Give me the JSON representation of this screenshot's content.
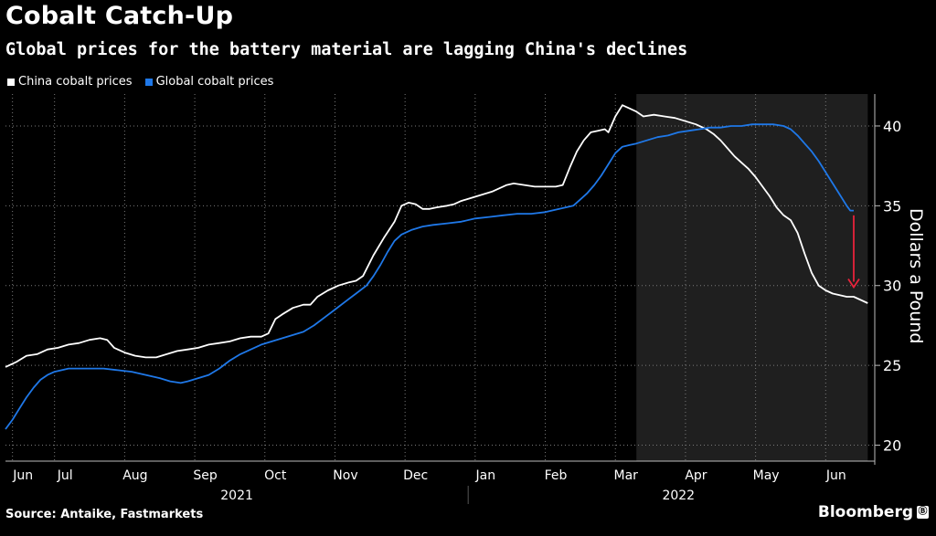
{
  "header": {
    "title": "Cobalt Catch-Up",
    "subtitle": "Global prices for the battery material are lagging China's declines"
  },
  "footer": {
    "source": "Source: Antaike, Fastmarkets",
    "brand": "Bloomberg",
    "brand_icon": "Ⓑ"
  },
  "colors": {
    "background": "#000000",
    "china_line": "#ffffff",
    "global_line": "#1f78e8",
    "highlight_band": "#1f1f1f",
    "arrow": "#e8233b",
    "grid": "#7a7a7a"
  },
  "chart_data": {
    "type": "line",
    "title": "Cobalt Catch-Up",
    "subtitle": "Global prices for the battery material are lagging China's declines",
    "ylabel": "Dollars a Pound",
    "xlabel": "",
    "ylim": [
      19,
      42
    ],
    "yticks": [
      20,
      25,
      30,
      35,
      40
    ],
    "xlim": [
      0,
      12.4
    ],
    "xticks": [
      {
        "label": "Jun",
        "pos": 0.25
      },
      {
        "label": "Jul",
        "pos": 0.85
      },
      {
        "label": "Aug",
        "pos": 1.85
      },
      {
        "label": "Sep",
        "pos": 2.85
      },
      {
        "label": "Oct",
        "pos": 3.85
      },
      {
        "label": "Nov",
        "pos": 4.85
      },
      {
        "label": "Dec",
        "pos": 5.85
      },
      {
        "label": "Jan",
        "pos": 6.85
      },
      {
        "label": "Feb",
        "pos": 7.85
      },
      {
        "label": "Mar",
        "pos": 8.85
      },
      {
        "label": "Apr",
        "pos": 9.85
      },
      {
        "label": "May",
        "pos": 10.85
      },
      {
        "label": "Jun",
        "pos": 11.85
      }
    ],
    "year_labels": [
      {
        "label": "2021",
        "pos": 3.3
      },
      {
        "label": "2022",
        "pos": 9.6
      }
    ],
    "year_divider": 6.6,
    "highlight_range": [
      9.0,
      12.3
    ],
    "arrow": {
      "x": 12.1,
      "y_from": 34.4,
      "y_to": 29.9
    },
    "grid": true,
    "legend_position": "top-left",
    "series": [
      {
        "name": "China cobalt prices",
        "color": "#ffffff",
        "points": [
          [
            0,
            24.9
          ],
          [
            0.15,
            25.2
          ],
          [
            0.3,
            25.6
          ],
          [
            0.45,
            25.7
          ],
          [
            0.6,
            26.0
          ],
          [
            0.75,
            26.1
          ],
          [
            0.9,
            26.3
          ],
          [
            1.05,
            26.4
          ],
          [
            1.2,
            26.6
          ],
          [
            1.35,
            26.7
          ],
          [
            1.45,
            26.6
          ],
          [
            1.55,
            26.1
          ],
          [
            1.7,
            25.8
          ],
          [
            1.85,
            25.6
          ],
          [
            2.0,
            25.5
          ],
          [
            2.15,
            25.5
          ],
          [
            2.3,
            25.7
          ],
          [
            2.45,
            25.9
          ],
          [
            2.6,
            26.0
          ],
          [
            2.75,
            26.1
          ],
          [
            2.9,
            26.3
          ],
          [
            3.05,
            26.4
          ],
          [
            3.2,
            26.5
          ],
          [
            3.35,
            26.7
          ],
          [
            3.5,
            26.8
          ],
          [
            3.65,
            26.8
          ],
          [
            3.75,
            27.0
          ],
          [
            3.85,
            27.9
          ],
          [
            3.95,
            28.2
          ],
          [
            4.1,
            28.6
          ],
          [
            4.25,
            28.8
          ],
          [
            4.35,
            28.8
          ],
          [
            4.45,
            29.3
          ],
          [
            4.6,
            29.7
          ],
          [
            4.75,
            30.0
          ],
          [
            4.9,
            30.2
          ],
          [
            5.0,
            30.3
          ],
          [
            5.1,
            30.6
          ],
          [
            5.25,
            31.9
          ],
          [
            5.4,
            33.0
          ],
          [
            5.55,
            34.0
          ],
          [
            5.65,
            35.0
          ],
          [
            5.75,
            35.2
          ],
          [
            5.85,
            35.1
          ],
          [
            5.95,
            34.8
          ],
          [
            6.05,
            34.8
          ],
          [
            6.15,
            34.9
          ],
          [
            6.3,
            35.0
          ],
          [
            6.4,
            35.1
          ],
          [
            6.5,
            35.3
          ],
          [
            6.65,
            35.5
          ],
          [
            6.8,
            35.7
          ],
          [
            6.95,
            35.9
          ],
          [
            7.05,
            36.1
          ],
          [
            7.15,
            36.3
          ],
          [
            7.25,
            36.4
          ],
          [
            7.4,
            36.3
          ],
          [
            7.55,
            36.2
          ],
          [
            7.7,
            36.2
          ],
          [
            7.85,
            36.2
          ],
          [
            7.95,
            36.3
          ],
          [
            8.05,
            37.4
          ],
          [
            8.15,
            38.4
          ],
          [
            8.25,
            39.1
          ],
          [
            8.35,
            39.6
          ],
          [
            8.45,
            39.7
          ],
          [
            8.55,
            39.8
          ],
          [
            8.6,
            39.6
          ],
          [
            8.7,
            40.6
          ],
          [
            8.8,
            41.3
          ],
          [
            8.9,
            41.1
          ],
          [
            9.0,
            40.9
          ],
          [
            9.1,
            40.6
          ],
          [
            9.25,
            40.7
          ],
          [
            9.4,
            40.6
          ],
          [
            9.55,
            40.5
          ],
          [
            9.7,
            40.3
          ],
          [
            9.85,
            40.1
          ],
          [
            10.0,
            39.8
          ],
          [
            10.1,
            39.5
          ],
          [
            10.2,
            39.1
          ],
          [
            10.3,
            38.6
          ],
          [
            10.4,
            38.1
          ],
          [
            10.5,
            37.7
          ],
          [
            10.6,
            37.3
          ],
          [
            10.7,
            36.8
          ],
          [
            10.8,
            36.2
          ],
          [
            10.9,
            35.6
          ],
          [
            11.0,
            34.9
          ],
          [
            11.1,
            34.4
          ],
          [
            11.2,
            34.1
          ],
          [
            11.3,
            33.3
          ],
          [
            11.4,
            32.0
          ],
          [
            11.5,
            30.8
          ],
          [
            11.6,
            30.0
          ],
          [
            11.7,
            29.7
          ],
          [
            11.8,
            29.5
          ],
          [
            11.9,
            29.4
          ],
          [
            12.0,
            29.3
          ],
          [
            12.1,
            29.3
          ],
          [
            12.2,
            29.1
          ],
          [
            12.3,
            28.9
          ]
        ]
      },
      {
        "name": "Global cobalt prices",
        "color": "#1f78e8",
        "points": [
          [
            0,
            21.0
          ],
          [
            0.1,
            21.6
          ],
          [
            0.2,
            22.3
          ],
          [
            0.3,
            23.0
          ],
          [
            0.4,
            23.6
          ],
          [
            0.5,
            24.1
          ],
          [
            0.6,
            24.4
          ],
          [
            0.7,
            24.6
          ],
          [
            0.8,
            24.7
          ],
          [
            0.9,
            24.8
          ],
          [
            1.0,
            24.8
          ],
          [
            1.2,
            24.8
          ],
          [
            1.4,
            24.8
          ],
          [
            1.6,
            24.7
          ],
          [
            1.8,
            24.6
          ],
          [
            2.0,
            24.4
          ],
          [
            2.2,
            24.2
          ],
          [
            2.35,
            24.0
          ],
          [
            2.5,
            23.9
          ],
          [
            2.6,
            24.0
          ],
          [
            2.75,
            24.2
          ],
          [
            2.9,
            24.4
          ],
          [
            3.05,
            24.8
          ],
          [
            3.2,
            25.3
          ],
          [
            3.35,
            25.7
          ],
          [
            3.5,
            26.0
          ],
          [
            3.65,
            26.3
          ],
          [
            3.8,
            26.5
          ],
          [
            3.95,
            26.7
          ],
          [
            4.1,
            26.9
          ],
          [
            4.25,
            27.1
          ],
          [
            4.4,
            27.5
          ],
          [
            4.55,
            28.0
          ],
          [
            4.7,
            28.5
          ],
          [
            4.85,
            29.0
          ],
          [
            5.0,
            29.5
          ],
          [
            5.15,
            30.0
          ],
          [
            5.25,
            30.6
          ],
          [
            5.35,
            31.3
          ],
          [
            5.45,
            32.1
          ],
          [
            5.55,
            32.8
          ],
          [
            5.65,
            33.2
          ],
          [
            5.8,
            33.5
          ],
          [
            5.95,
            33.7
          ],
          [
            6.1,
            33.8
          ],
          [
            6.3,
            33.9
          ],
          [
            6.5,
            34.0
          ],
          [
            6.7,
            34.2
          ],
          [
            6.9,
            34.3
          ],
          [
            7.1,
            34.4
          ],
          [
            7.3,
            34.5
          ],
          [
            7.5,
            34.5
          ],
          [
            7.7,
            34.6
          ],
          [
            7.9,
            34.8
          ],
          [
            8.1,
            35.0
          ],
          [
            8.2,
            35.4
          ],
          [
            8.3,
            35.8
          ],
          [
            8.4,
            36.3
          ],
          [
            8.5,
            36.9
          ],
          [
            8.6,
            37.6
          ],
          [
            8.7,
            38.3
          ],
          [
            8.8,
            38.7
          ],
          [
            8.9,
            38.8
          ],
          [
            9.0,
            38.9
          ],
          [
            9.15,
            39.1
          ],
          [
            9.3,
            39.3
          ],
          [
            9.45,
            39.4
          ],
          [
            9.6,
            39.6
          ],
          [
            9.75,
            39.7
          ],
          [
            9.9,
            39.8
          ],
          [
            10.05,
            39.9
          ],
          [
            10.2,
            39.9
          ],
          [
            10.35,
            40.0
          ],
          [
            10.5,
            40.0
          ],
          [
            10.65,
            40.1
          ],
          [
            10.8,
            40.1
          ],
          [
            10.95,
            40.1
          ],
          [
            11.1,
            40.0
          ],
          [
            11.2,
            39.8
          ],
          [
            11.3,
            39.4
          ],
          [
            11.4,
            38.9
          ],
          [
            11.5,
            38.4
          ],
          [
            11.6,
            37.8
          ],
          [
            11.7,
            37.1
          ],
          [
            11.8,
            36.4
          ],
          [
            11.9,
            35.7
          ],
          [
            12.0,
            35.0
          ],
          [
            12.05,
            34.7
          ],
          [
            12.1,
            34.7
          ]
        ]
      }
    ]
  }
}
